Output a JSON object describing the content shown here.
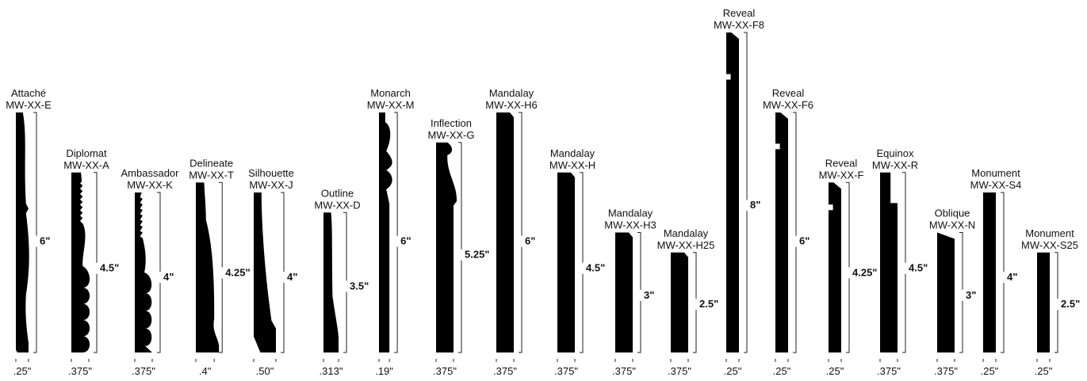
{
  "profiles": [
    {
      "name": "Attaché",
      "code": "MW-XX-E",
      "height": "6\"",
      "width": ".25\"",
      "h_in": 6,
      "w_in": 0.25,
      "shape": "attache"
    },
    {
      "name": "Diplomat",
      "code": "MW-XX-A",
      "height": "4.5\"",
      "width": ".375\"",
      "h_in": 4.5,
      "w_in": 0.375,
      "shape": "diplomat"
    },
    {
      "name": "Ambassador",
      "code": "MW-XX-K",
      "height": "4\"",
      "width": ".375\"",
      "h_in": 4,
      "w_in": 0.375,
      "shape": "ambassador"
    },
    {
      "name": "Delineate",
      "code": "MW-XX-T",
      "height": "4.25\"",
      "width": ".4\"",
      "h_in": 4.25,
      "w_in": 0.4,
      "shape": "delineate"
    },
    {
      "name": "Silhouette",
      "code": "MW-XX-J",
      "height": "4\"",
      "width": ".50\"",
      "h_in": 4,
      "w_in": 0.5,
      "shape": "silhouette"
    },
    {
      "name": "Outline",
      "code": "MW-XX-D",
      "height": "3.5\"",
      "width": ".313\"",
      "h_in": 3.5,
      "w_in": 0.313,
      "shape": "outline"
    },
    {
      "name": "Monarch",
      "code": "MW-XX-M",
      "height": "6\"",
      "width": ".19\"",
      "h_in": 6,
      "w_in": 0.19,
      "shape": "monarch"
    },
    {
      "name": "Inflection",
      "code": "MW-XX-G",
      "height": "5.25\"",
      "width": ".375\"",
      "h_in": 5.25,
      "w_in": 0.375,
      "shape": "inflection"
    },
    {
      "name": "Mandalay",
      "code": "MW-XX-H6",
      "height": "6\"",
      "width": ".375\"",
      "h_in": 6,
      "w_in": 0.375,
      "shape": "mandalay"
    },
    {
      "name": "Mandalay",
      "code": "MW-XX-H",
      "height": "4.5\"",
      "width": ".375\"",
      "h_in": 4.5,
      "w_in": 0.375,
      "shape": "mandalay"
    },
    {
      "name": "Mandalay",
      "code": "MW-XX-H3",
      "height": "3\"",
      "width": ".375\"",
      "h_in": 3,
      "w_in": 0.375,
      "shape": "mandalay"
    },
    {
      "name": "Mandalay",
      "code": "MW-XX-H25",
      "height": "2.5\"",
      "width": ".375\"",
      "h_in": 2.5,
      "w_in": 0.375,
      "shape": "mandalay"
    },
    {
      "name": "Reveal",
      "code": "MW-XX-F8",
      "height": "8\"",
      "width": ".25\"",
      "h_in": 8,
      "w_in": 0.25,
      "shape": "reveal"
    },
    {
      "name": "Reveal",
      "code": "MW-XX-F6",
      "height": "6\"",
      "width": ".25\"",
      "h_in": 6,
      "w_in": 0.25,
      "shape": "reveal"
    },
    {
      "name": "Reveal",
      "code": "MW-XX-F",
      "height": "4.25\"",
      "width": ".25\"",
      "h_in": 4.25,
      "w_in": 0.25,
      "shape": "reveal"
    },
    {
      "name": "Equinox",
      "code": "MW-XX-R",
      "height": "4.5\"",
      "width": ".375\"",
      "h_in": 4.5,
      "w_in": 0.375,
      "shape": "equinox"
    },
    {
      "name": "Oblique",
      "code": "MW-XX-N",
      "height": "3\"",
      "width": ".375\"",
      "h_in": 3,
      "w_in": 0.375,
      "shape": "oblique"
    },
    {
      "name": "Monument",
      "code": "MW-XX-S4",
      "height": "4\"",
      "width": ".25\"",
      "h_in": 4,
      "w_in": 0.25,
      "shape": "monument"
    },
    {
      "name": "Monument",
      "code": "MW-XX-S25",
      "height": "2.5\"",
      "width": ".25\"",
      "h_in": 2.5,
      "w_in": 0.25,
      "shape": "monument"
    }
  ],
  "colors": {
    "profile": "#000000",
    "text": "#111111",
    "line": "#222222"
  }
}
